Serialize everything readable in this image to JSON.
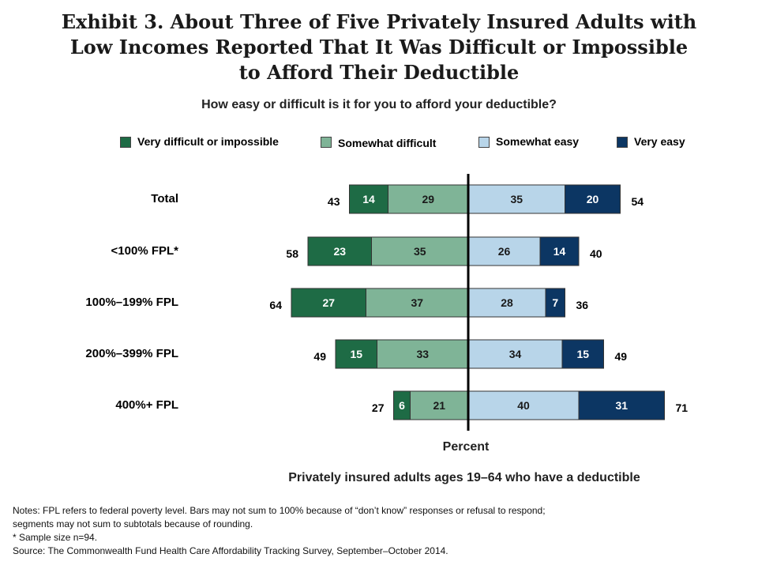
{
  "title_lines": [
    "Exhibit 3. About Three of Five Privately Insured Adults with",
    "Low Incomes Reported That It Was Difficult or Impossible",
    "to Afford Their Deductible"
  ],
  "chart_data": {
    "type": "bar",
    "orientation": "horizontal-diverging",
    "subtitle": "How easy or difficult is it for you to afford your deductible?",
    "xlabel": "Percent",
    "caption": "Privately insured adults ages 19–64 who have a deductible",
    "categories": [
      "Total",
      "<100% FPL*",
      "100%–199% FPL",
      "200%–399% FPL",
      "400%+ FPL"
    ],
    "series": [
      {
        "name": "Very difficult or impossible",
        "side": "left",
        "color": "#1e6b45",
        "values": [
          14,
          23,
          27,
          15,
          6
        ]
      },
      {
        "name": "Somewhat difficult",
        "side": "left",
        "color": "#7fb497",
        "values": [
          29,
          35,
          37,
          33,
          21
        ]
      },
      {
        "name": "Somewhat easy",
        "side": "right",
        "color": "#b8d5e9",
        "values": [
          35,
          26,
          28,
          34,
          40
        ]
      },
      {
        "name": "Very easy",
        "side": "right",
        "color": "#0c3663",
        "values": [
          20,
          14,
          7,
          15,
          31
        ]
      }
    ],
    "totals_difficult": [
      43,
      58,
      64,
      49,
      27
    ],
    "totals_easy": [
      54,
      40,
      36,
      49,
      71
    ],
    "legend_position": "top"
  },
  "notes": [
    "Notes: FPL refers to federal poverty level. Bars may not sum to 100% because of “don’t know” responses or refusal to respond;",
    "segments may not sum to subtotals because of rounding.",
    "* Sample size n=94.",
    "Source: The Commonwealth Fund Health Care Affordability Tracking Survey, September–October 2014."
  ]
}
